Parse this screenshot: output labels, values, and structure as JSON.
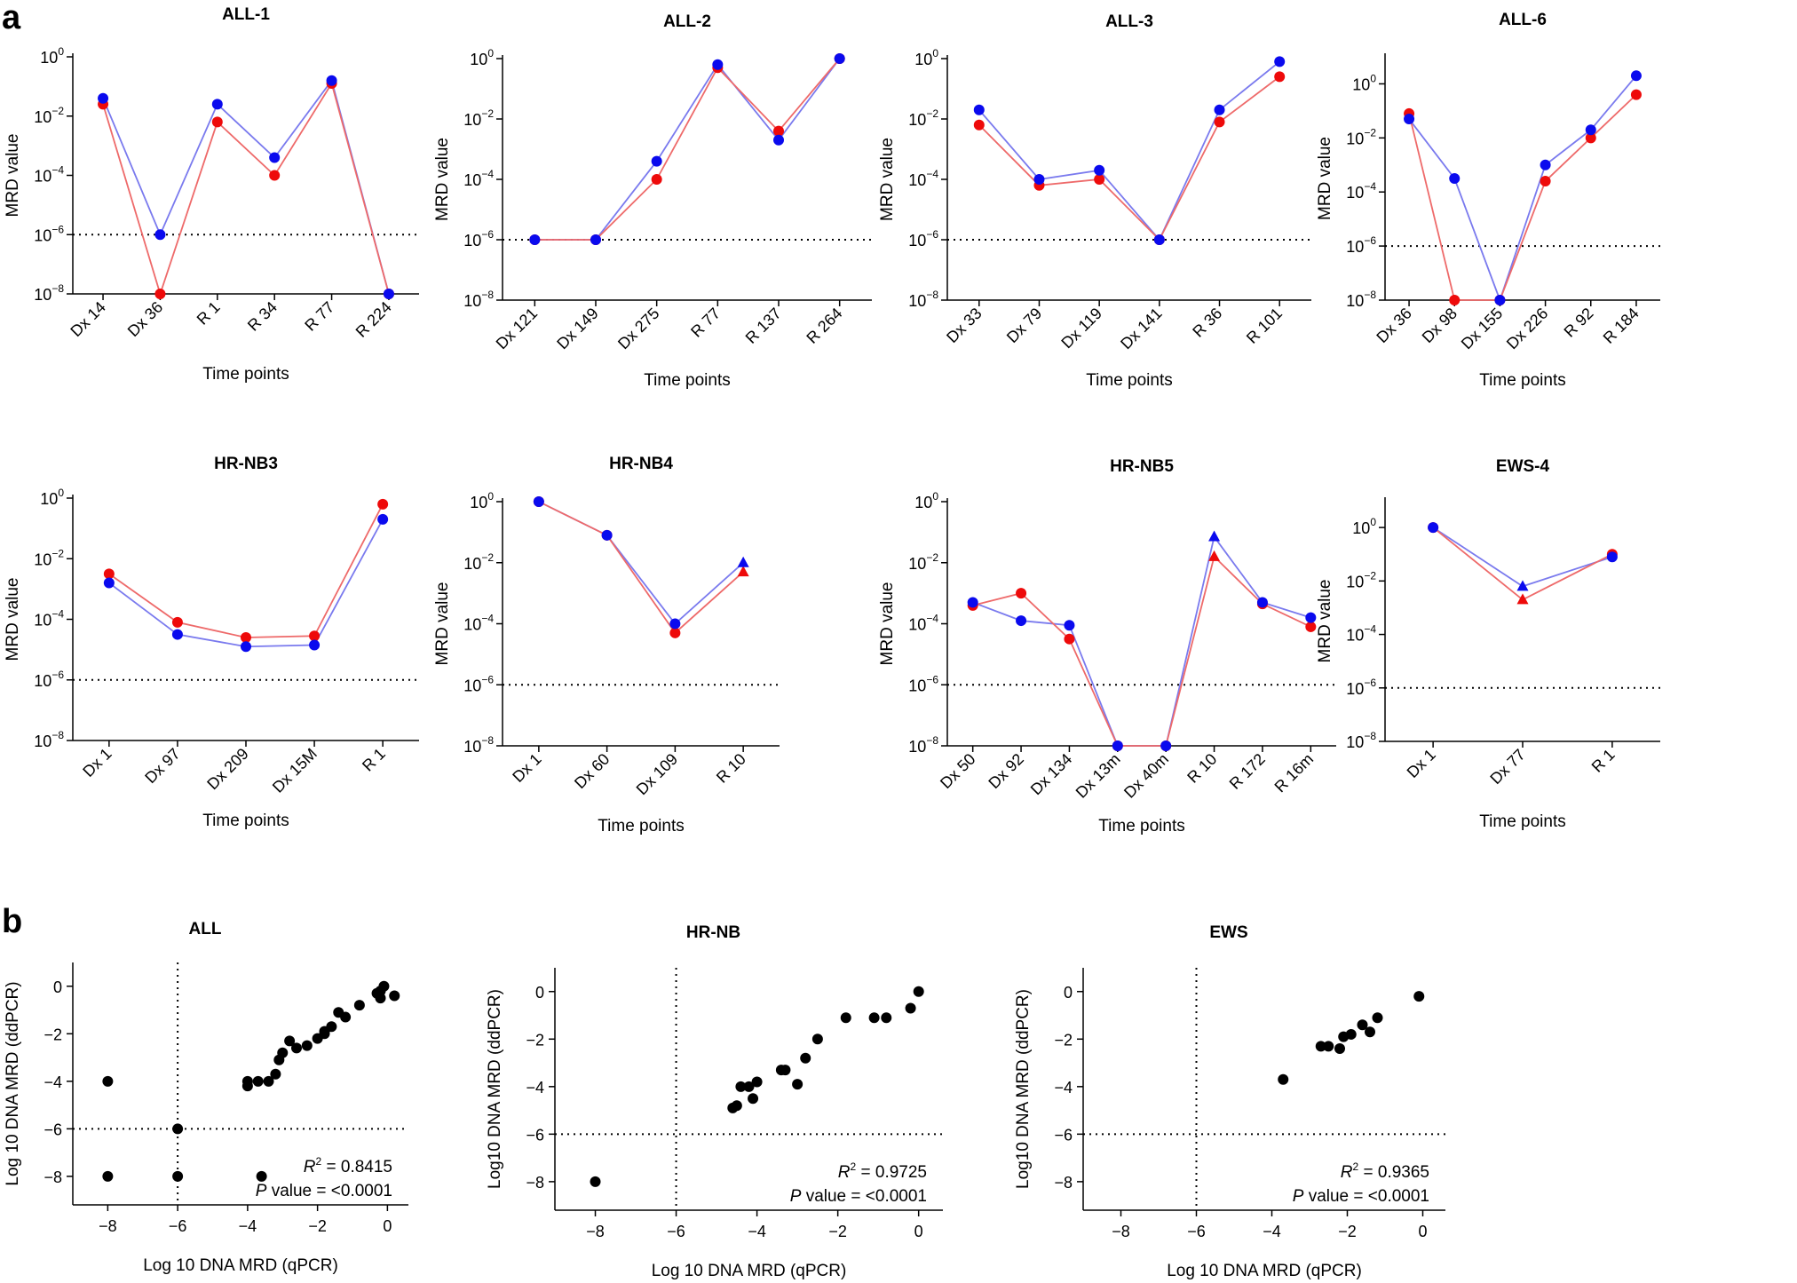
{
  "panel_labels": {
    "a": "a",
    "b": "b"
  },
  "colors": {
    "series_1": "#0a0aee",
    "series_2": "#ee0a0a",
    "series_1_line": "#7a7aee",
    "series_2_line": "#ee6a6a",
    "scatter": "#000000"
  },
  "chart_data": [
    {
      "type": "line",
      "title": "ALL-1",
      "xlabel": "Time points",
      "ylabel": "MRD value",
      "yscale": "log10",
      "ylim": [
        -8,
        0
      ],
      "yticks": [
        0,
        -2,
        -4,
        -6,
        -8
      ],
      "threshold": -6,
      "categories": [
        "Dx 14",
        "Dx 36",
        "R 1",
        "R 34",
        "R 77",
        "R 224"
      ],
      "series": [
        {
          "name": "blue",
          "values": [
            -1.4,
            -6,
            -1.6,
            -3.4,
            -0.8,
            -8
          ],
          "markers": [
            "circle",
            "circle",
            "circle",
            "circle",
            "circle",
            "circle"
          ]
        },
        {
          "name": "red",
          "values": [
            -1.6,
            -8,
            -2.2,
            -4,
            -0.9,
            -8
          ],
          "markers": [
            "circle",
            "circle",
            "circle",
            "circle",
            "circle",
            "circle"
          ]
        }
      ]
    },
    {
      "type": "line",
      "title": "ALL-2",
      "xlabel": "Time points",
      "ylabel": "MRD value",
      "yscale": "log10",
      "ylim": [
        -8,
        0
      ],
      "yticks": [
        0,
        -2,
        -4,
        -6,
        -8
      ],
      "threshold": -6,
      "categories": [
        "Dx 121",
        "Dx 149",
        "Dx 275",
        "R 77",
        "R 137",
        "R 264"
      ],
      "series": [
        {
          "name": "blue",
          "values": [
            -6,
            -6,
            -3.4,
            -0.2,
            -2.7,
            0
          ],
          "markers": [
            "circle",
            "circle",
            "circle",
            "circle",
            "circle",
            "circle"
          ]
        },
        {
          "name": "red",
          "values": [
            -6,
            -6,
            -4,
            -0.3,
            -2.4,
            0
          ],
          "markers": [
            "circle",
            "circle",
            "circle",
            "circle",
            "circle",
            "circle"
          ]
        }
      ]
    },
    {
      "type": "line",
      "title": "ALL-3",
      "xlabel": "Time points",
      "ylabel": "MRD value",
      "yscale": "log10",
      "ylim": [
        -8,
        0
      ],
      "yticks": [
        0,
        -2,
        -4,
        -6,
        -8
      ],
      "threshold": -6,
      "categories": [
        "Dx 33",
        "Dx 79",
        "Dx 119",
        "Dx 141",
        "R 36",
        "R 101"
      ],
      "series": [
        {
          "name": "blue",
          "values": [
            -1.7,
            -4,
            -3.7,
            -6,
            -1.7,
            -0.1
          ],
          "markers": [
            "circle",
            "circle",
            "circle",
            "circle",
            "circle",
            "circle"
          ]
        },
        {
          "name": "red",
          "values": [
            -2.2,
            -4.2,
            -4,
            -6,
            -2.1,
            -0.6
          ],
          "markers": [
            "circle",
            "circle",
            "circle",
            "circle",
            "circle",
            "circle"
          ]
        }
      ]
    },
    {
      "type": "line",
      "title": "ALL-6",
      "xlabel": "Time points",
      "ylabel": "MRD value",
      "yscale": "log10",
      "ylim": [
        -8,
        1
      ],
      "yticks": [
        0,
        -2,
        -4,
        -6,
        -8
      ],
      "threshold": -6,
      "categories": [
        "Dx 36",
        "Dx 98",
        "Dx 155",
        "Dx 226",
        "R 92",
        "R 184"
      ],
      "series": [
        {
          "name": "blue",
          "values": [
            -1.3,
            -3.5,
            -8,
            -3,
            -1.7,
            0.3
          ],
          "markers": [
            "circle",
            "circle",
            "circle",
            "circle",
            "circle",
            "circle"
          ]
        },
        {
          "name": "red",
          "values": [
            -1.1,
            -8,
            -8,
            -3.6,
            -2,
            -0.4
          ],
          "markers": [
            "circle",
            "circle",
            "circle",
            "circle",
            "circle",
            "circle"
          ]
        }
      ]
    },
    {
      "type": "line",
      "title": "HR-NB3",
      "xlabel": "Time points",
      "ylabel": "MRD value",
      "yscale": "log10",
      "ylim": [
        -8,
        0
      ],
      "yticks": [
        0,
        -2,
        -4,
        -6,
        -8
      ],
      "threshold": -6,
      "categories": [
        "Dx 1",
        "Dx 97",
        "Dx 209",
        "Dx 15M",
        "R 1"
      ],
      "series": [
        {
          "name": "blue",
          "values": [
            -2.8,
            -4.5,
            -4.9,
            -4.85,
            -0.7
          ],
          "markers": [
            "circle",
            "circle",
            "circle",
            "circle",
            "circle"
          ]
        },
        {
          "name": "red",
          "values": [
            -2.5,
            -4.1,
            -4.6,
            -4.55,
            -0.2
          ],
          "markers": [
            "circle",
            "circle",
            "circle",
            "circle",
            "circle"
          ]
        }
      ]
    },
    {
      "type": "line",
      "title": "HR-NB4",
      "xlabel": "Time points",
      "ylabel": "MRD value",
      "yscale": "log10",
      "ylim": [
        -8,
        0
      ],
      "yticks": [
        0,
        -2,
        -4,
        -6,
        -8
      ],
      "threshold": -6,
      "categories": [
        "Dx 1",
        "Dx 60",
        "Dx 109",
        "R 10"
      ],
      "series": [
        {
          "name": "blue",
          "values": [
            0,
            -1.1,
            -4,
            -2
          ],
          "markers": [
            "circle",
            "circle",
            "circle",
            "triangle"
          ]
        },
        {
          "name": "red",
          "values": [
            0,
            -1.1,
            -4.3,
            -2.3
          ],
          "markers": [
            "circle",
            "circle",
            "circle",
            "triangle"
          ]
        }
      ]
    },
    {
      "type": "line",
      "title": "HR-NB5",
      "xlabel": "Time points",
      "ylabel": "MRD value",
      "yscale": "log10",
      "ylim": [
        -8,
        0
      ],
      "yticks": [
        0,
        -2,
        -4,
        -6,
        -8
      ],
      "threshold": -6,
      "categories": [
        "Dx 50",
        "Dx 92",
        "Dx 134",
        "Dx 13m",
        "Dx 40m",
        "R 10",
        "R 172",
        "R 16m"
      ],
      "series": [
        {
          "name": "blue",
          "values": [
            -3.3,
            -3.9,
            -4.05,
            -8,
            -8,
            -1.15,
            -3.3,
            -3.8
          ],
          "markers": [
            "circle",
            "circle",
            "circle",
            "circle",
            "circle",
            "triangle",
            "circle",
            "circle"
          ]
        },
        {
          "name": "red",
          "values": [
            -3.4,
            -3,
            -4.5,
            -8,
            -8,
            -1.8,
            -3.35,
            -4.1
          ],
          "markers": [
            "circle",
            "circle",
            "circle",
            "circle",
            "circle",
            "triangle",
            "circle",
            "circle"
          ]
        }
      ]
    },
    {
      "type": "line",
      "title": "EWS-4",
      "xlabel": "Time points",
      "ylabel": "MRD value",
      "yscale": "log10",
      "ylim": [
        -8,
        1
      ],
      "yticks": [
        0,
        -2,
        -4,
        -6,
        -8
      ],
      "threshold": -6,
      "categories": [
        "Dx 1",
        "Dx 77",
        "R 1"
      ],
      "series": [
        {
          "name": "blue",
          "values": [
            0,
            -2.2,
            -1.1
          ],
          "markers": [
            "circle",
            "triangle",
            "circle"
          ]
        },
        {
          "name": "red",
          "values": [
            0,
            -2.7,
            -1
          ],
          "markers": [
            "circle",
            "triangle",
            "circle"
          ]
        }
      ]
    },
    {
      "type": "scatter",
      "title": "ALL",
      "xlabel": "Log 10 DNA MRD (qPCR)",
      "ylabel": "Log 10 DNA MRD (ddPCR)",
      "xlim": [
        -9,
        0.6
      ],
      "ylim": [
        -9.2,
        1
      ],
      "xticks": [
        -8,
        -6,
        -4,
        -2,
        0
      ],
      "yticks": [
        0,
        -2,
        -4,
        -6,
        -8
      ],
      "threshold_x": -6,
      "threshold_y": -6,
      "r2": "0.8415",
      "p_value": "<0.0001",
      "x": [
        -8,
        -8,
        -6,
        -6,
        -3.6,
        -4,
        -4,
        -3.7,
        -3.4,
        -3.2,
        -3.1,
        -3,
        -2.8,
        -2.6,
        -2.3,
        -2,
        -1.8,
        -1.8,
        -1.6,
        -1.4,
        -1.2,
        -0.8,
        -0.2,
        -0.2,
        -0.1,
        0.2,
        -0.3
      ],
      "y": [
        -4,
        -8,
        -6,
        -8,
        -8,
        -4.2,
        -4,
        -4,
        -4,
        -3.7,
        -3.1,
        -2.8,
        -2.3,
        -2.6,
        -2.5,
        -2.2,
        -2,
        -1.9,
        -1.7,
        -1.1,
        -1.3,
        -0.8,
        -0.5,
        -0.2,
        0,
        -0.4,
        -0.3
      ]
    },
    {
      "type": "scatter",
      "title": "HR-NB",
      "xlabel": "Log 10 DNA MRD (qPCR)",
      "ylabel": "Log10 DNA MRD (ddPCR)",
      "xlim": [
        -9,
        0.6
      ],
      "ylim": [
        -9.2,
        1
      ],
      "xticks": [
        -8,
        -6,
        -4,
        -2,
        0
      ],
      "yticks": [
        0,
        -2,
        -4,
        -6,
        -8
      ],
      "threshold_x": -6,
      "threshold_y": -6,
      "r2": "0.9725",
      "p_value": "<0.0001",
      "x": [
        -8,
        -4.6,
        -4.5,
        -4.4,
        -4.2,
        -4.1,
        -4,
        -3.4,
        -3.3,
        -3,
        -2.8,
        -2.5,
        -1.8,
        -1.1,
        -0.8,
        -0.2,
        0
      ],
      "y": [
        -8,
        -4.9,
        -4.8,
        -4,
        -4,
        -4.5,
        -3.8,
        -3.3,
        -3.3,
        -3.9,
        -2.8,
        -2,
        -1.1,
        -1.1,
        -1.1,
        -0.7,
        0
      ]
    },
    {
      "type": "scatter",
      "title": "EWS",
      "xlabel": "Log 10 DNA MRD (qPCR)",
      "ylabel": "Log10 DNA MRD (ddPCR)",
      "xlim": [
        -9,
        0.6
      ],
      "ylim": [
        -9.2,
        1
      ],
      "xticks": [
        -8,
        -6,
        -4,
        -2,
        0
      ],
      "yticks": [
        0,
        -2,
        -4,
        -6,
        -8
      ],
      "threshold_x": -6,
      "threshold_y": -6,
      "r2": "0.9365",
      "p_value": "<0.0001",
      "x": [
        -3.7,
        -2.7,
        -2.5,
        -2.2,
        -2.1,
        -1.9,
        -1.6,
        -1.4,
        -1.2,
        -0.1
      ],
      "y": [
        -3.7,
        -2.3,
        -2.3,
        -2.4,
        -1.9,
        -1.8,
        -1.4,
        -1.7,
        -1.1,
        -0.2
      ]
    }
  ]
}
